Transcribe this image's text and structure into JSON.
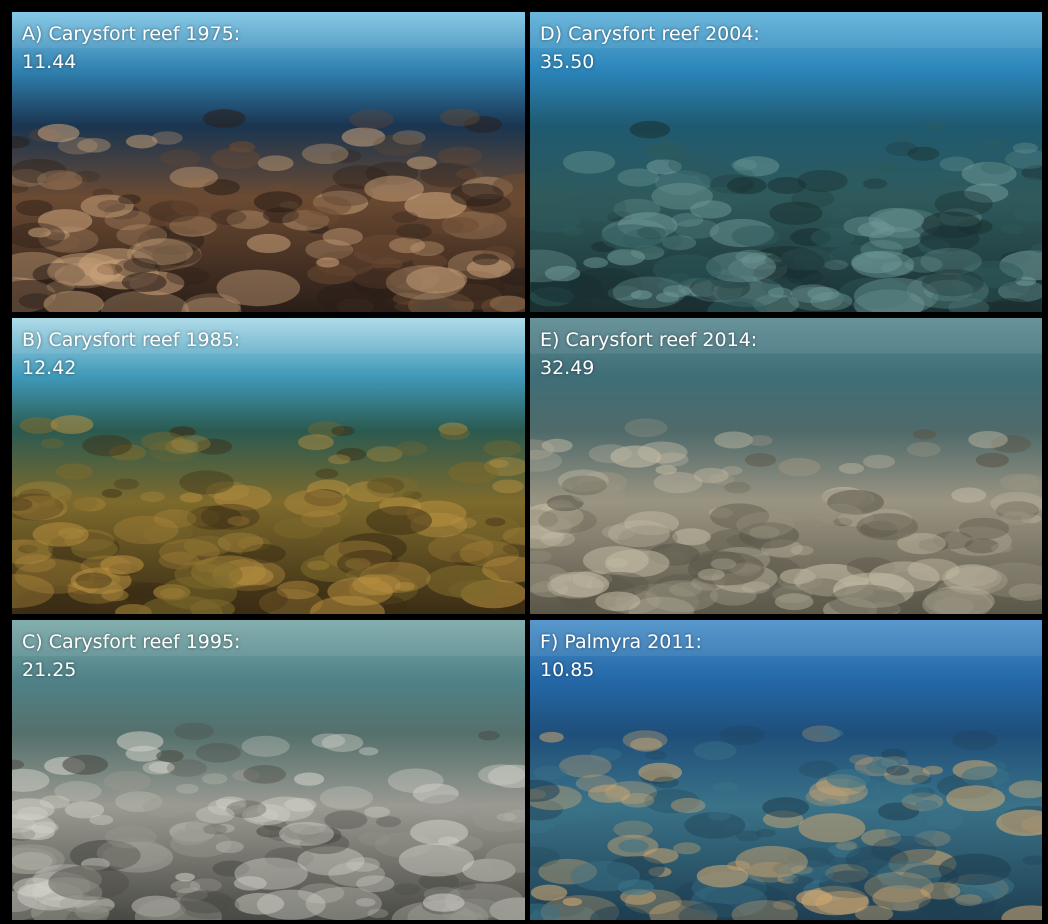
{
  "panels": [
    {
      "label": "A) Carysfort reef 1975:",
      "value": "11.44"
    },
    {
      "label": "B) Carysfort reef 1985:",
      "value": "12.42"
    },
    {
      "label": "C) Carysfort reef 1995:",
      "value": "21.25"
    },
    {
      "label": "D) Carysfort reef 2004:",
      "value": "35.50"
    },
    {
      "label": "E) Carysfort reef 2014:",
      "value": "32.49"
    },
    {
      "label": "F) Palmyra 2011:",
      "value": "10.85"
    }
  ]
}
